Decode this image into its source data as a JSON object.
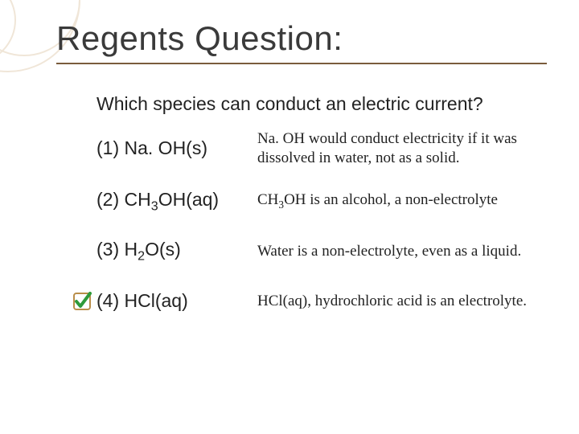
{
  "title": "Regents Question:",
  "question": "Which species can conduct an electric current?",
  "options": [
    {
      "label_html": "(1) Na. OH(s)",
      "explanation_html": "Na. OH would conduct electricity if it was dissolved in water, not as a solid.",
      "checked": false
    },
    {
      "label_html": "(2) CH<sub>3</sub>OH(aq)",
      "explanation_html": "CH<sub>3</sub>OH is an alcohol, a non-electrolyte",
      "checked": false
    },
    {
      "label_html": "(3) H<sub>2</sub>O(s)",
      "explanation_html": "Water is a non-electrolyte, even as a liquid.",
      "checked": false
    },
    {
      "label_html": "(4) HCl(aq)",
      "explanation_html": "HCl(aq), hydrochloric acid is an electrolyte.",
      "checked": true
    }
  ],
  "style": {
    "title_color": "#3a3a3a",
    "underline_color": "#7a5c3c",
    "text_color": "#222222",
    "check_box_border": "#b98e4a",
    "check_fill": "#2e9a3a",
    "background": "#ffffff",
    "deco_circle_color": "#f0e6d8",
    "title_fontsize": 42,
    "question_fontsize": 23,
    "option_fontsize": 23,
    "explanation_fontsize": 19,
    "explanation_font": "Times New Roman"
  }
}
